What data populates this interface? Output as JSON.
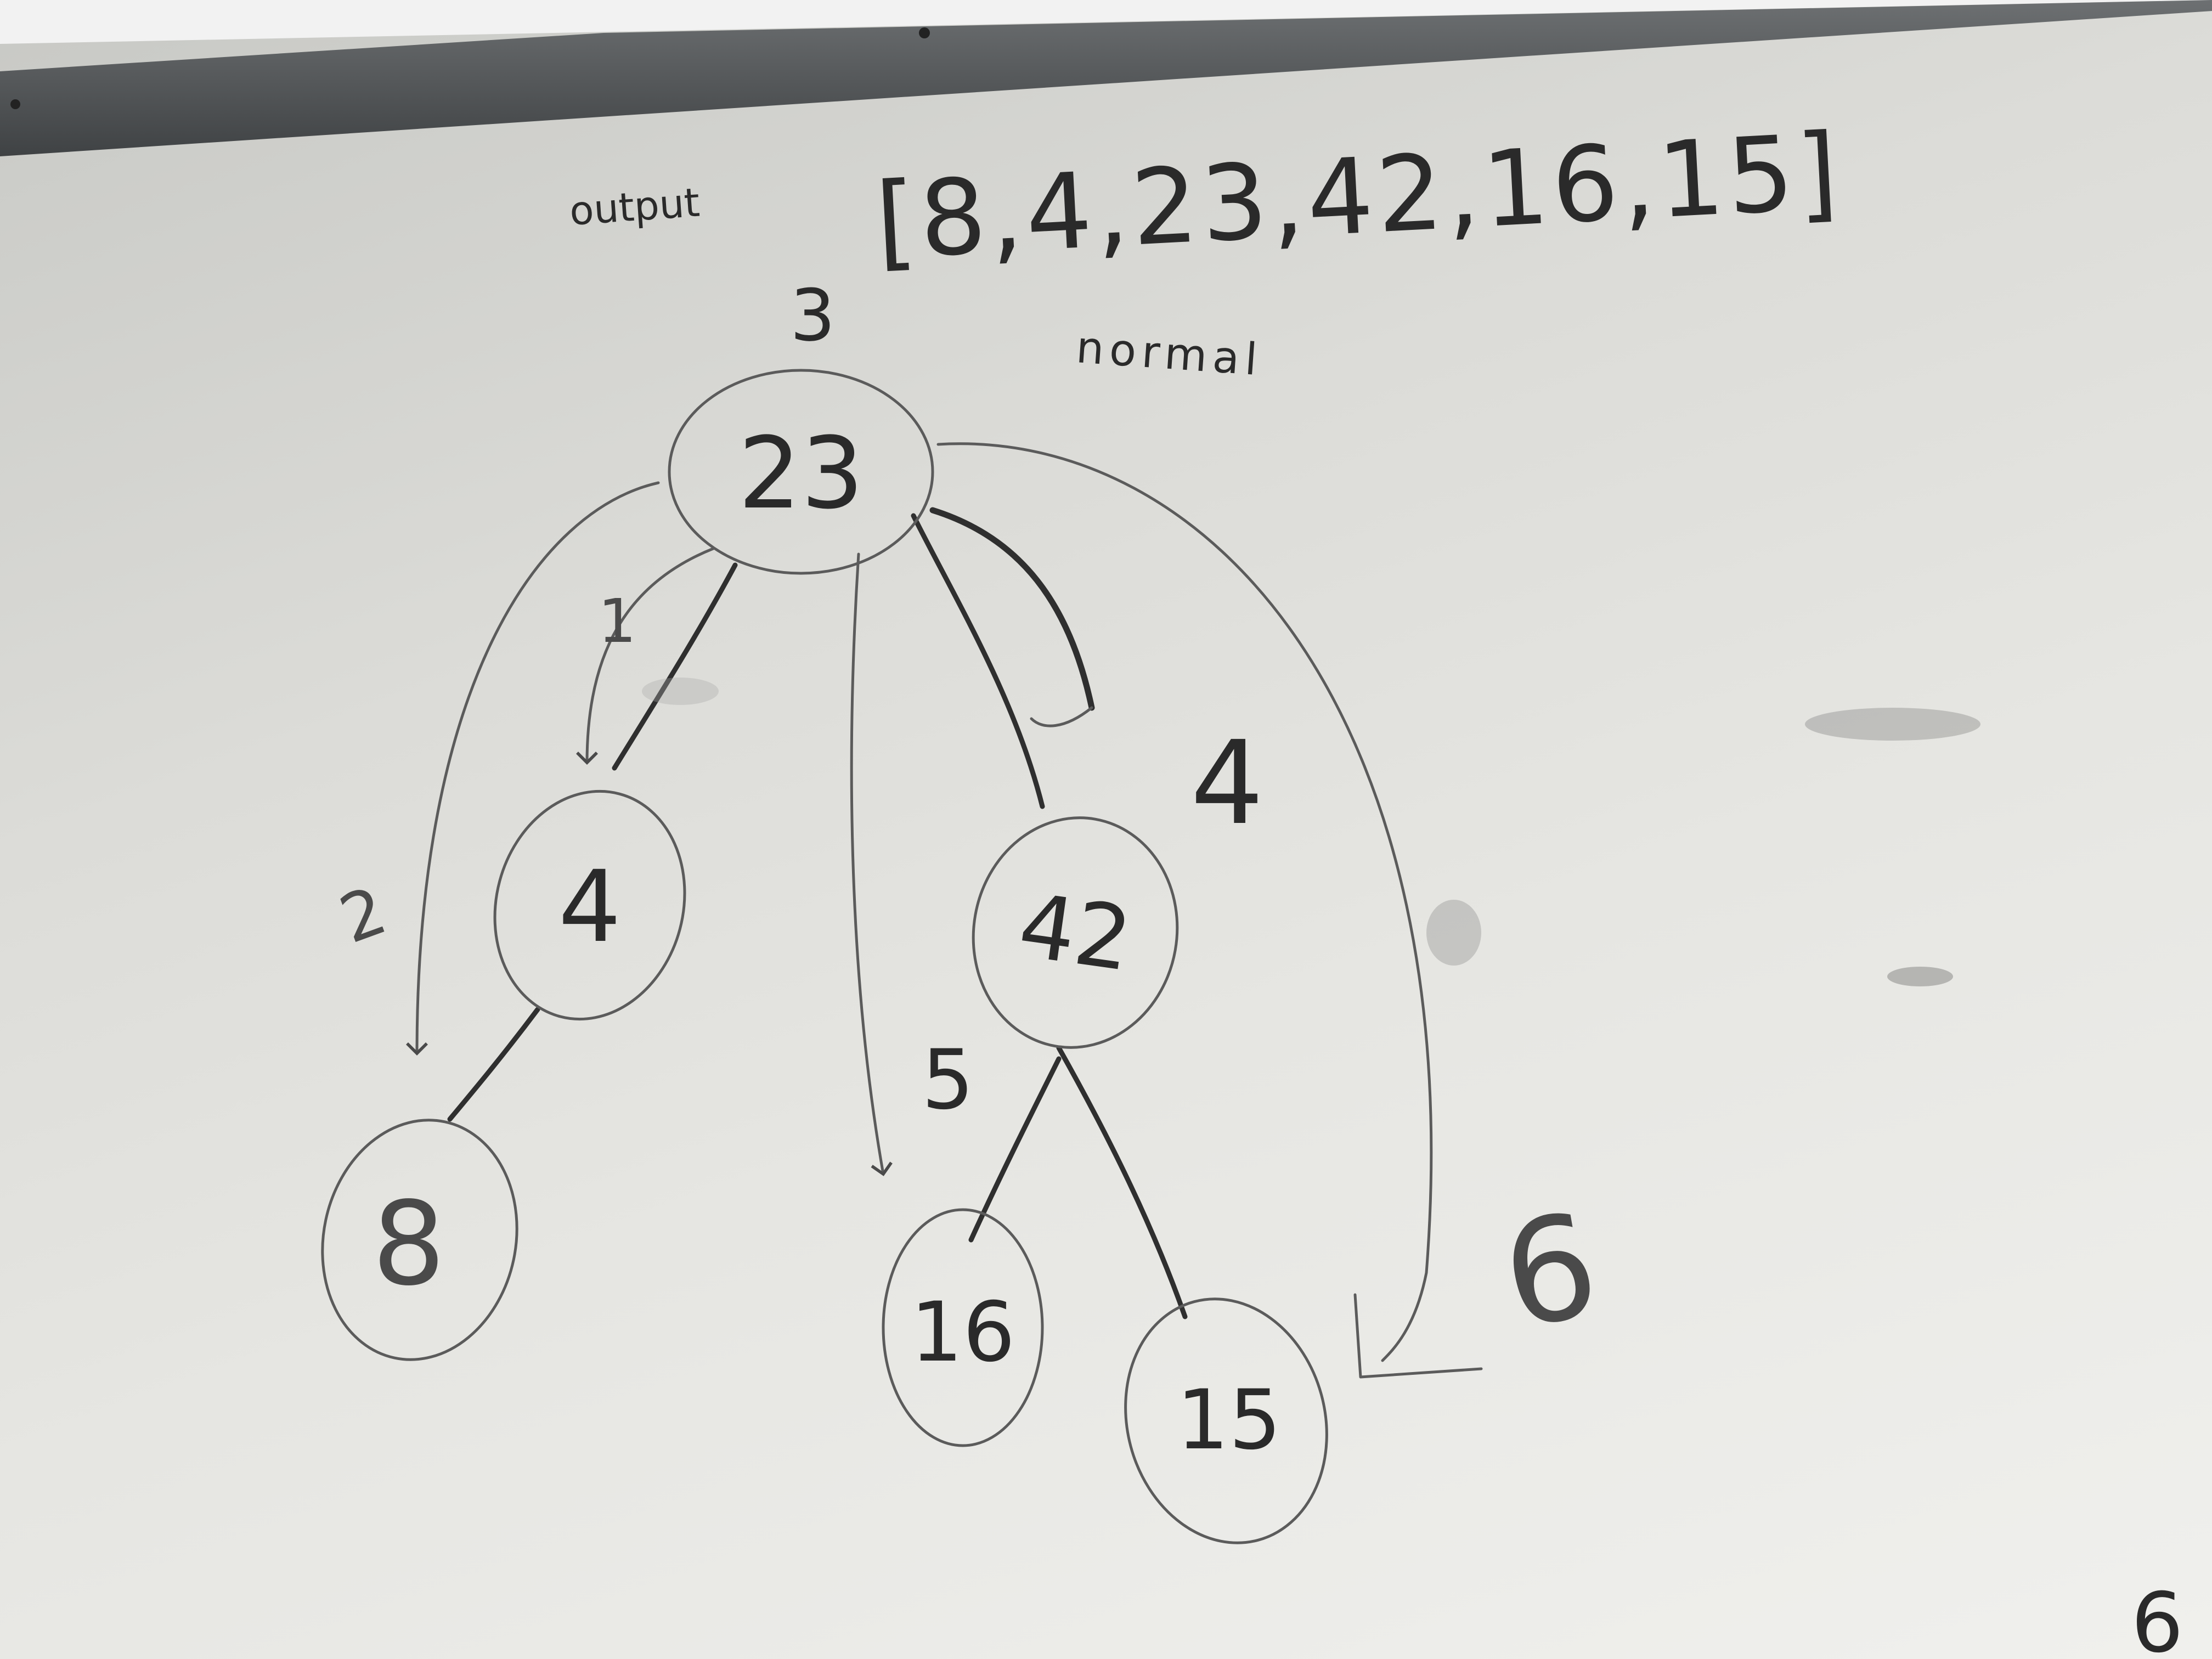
{
  "whiteboard": {
    "output_label": "output",
    "output_array": "[8,4,23,42,16,15]",
    "normal_label": "normal",
    "colors": {
      "board": "#e4e4e0",
      "marker": "#2f2f2f",
      "frame": "#56595b"
    }
  },
  "tree": {
    "nodes": [
      {
        "id": "n23",
        "label": "23"
      },
      {
        "id": "n4",
        "label": "4"
      },
      {
        "id": "n42",
        "label": "42"
      },
      {
        "id": "n8",
        "label": "8"
      },
      {
        "id": "n16",
        "label": "16"
      },
      {
        "id": "n15",
        "label": "15"
      }
    ],
    "edges": [
      [
        "23",
        "4"
      ],
      [
        "23",
        "42"
      ],
      [
        "4",
        "8"
      ],
      [
        "42",
        "16"
      ],
      [
        "42",
        "15"
      ]
    ],
    "traversal_order_marks": [
      "1",
      "2",
      "3",
      "4",
      "5",
      "6"
    ]
  },
  "corner_mark": "6"
}
